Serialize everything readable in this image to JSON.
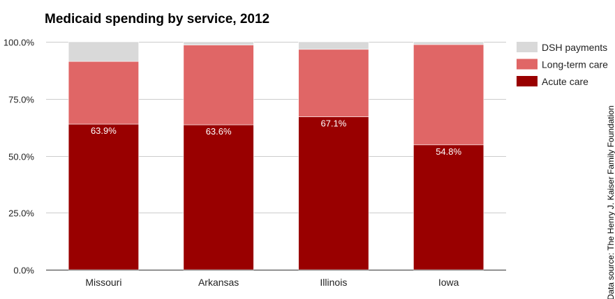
{
  "chart_data": {
    "type": "bar",
    "stacked": true,
    "title": "Medicaid spending by service, 2012",
    "categories": [
      "Missouri",
      "Arkansas",
      "Illinois",
      "Iowa"
    ],
    "series": [
      {
        "name": "Acute care",
        "color": "#990000",
        "values": [
          63.9,
          63.6,
          67.1,
          54.8
        ],
        "data_labels": [
          "63.9%",
          "63.6%",
          "67.1%",
          "54.8%"
        ]
      },
      {
        "name": "Long-term care",
        "color": "#e06666",
        "values": [
          27.5,
          35.0,
          29.6,
          44.0
        ]
      },
      {
        "name": "DSH payments",
        "color": "#d9d9d9",
        "values": [
          8.6,
          1.4,
          3.3,
          1.2
        ]
      }
    ],
    "ylim": [
      0,
      100
    ],
    "yticks": [
      0,
      25,
      50,
      75,
      100
    ],
    "ytick_labels": [
      "0.0%",
      "25.0%",
      "50.0%",
      "75.0%",
      "100.0%"
    ],
    "legend_position": "right",
    "legend_order": [
      "DSH payments",
      "Long-term care",
      "Acute care"
    ],
    "grid": true,
    "source_note": "Data source: The Henry J. Kaiser Family Foundation"
  }
}
